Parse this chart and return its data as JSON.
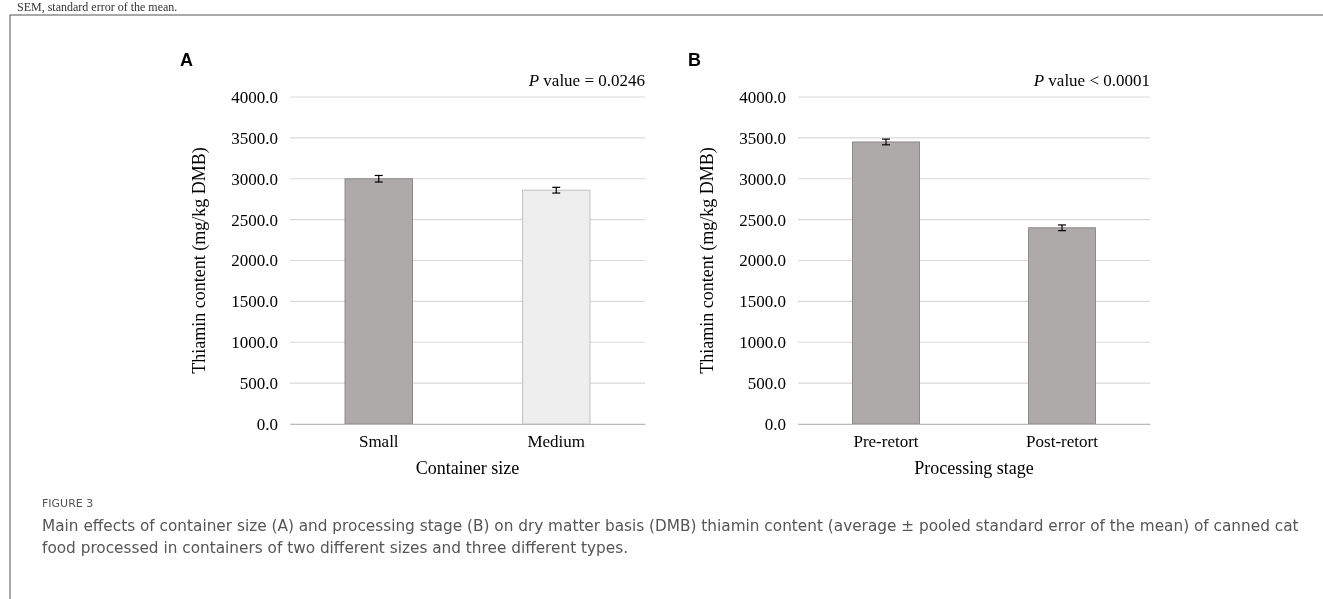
{
  "chart_data": [
    {
      "type": "bar",
      "title": "A",
      "xlabel": "Container size",
      "ylabel": "Thiamin content (mg/kg DMB)",
      "categories": [
        "Small",
        "Medium"
      ],
      "values": [
        3000,
        2860
      ],
      "errors": [
        40,
        35
      ],
      "colors": [
        "#aeaaaa",
        "#eeeeee"
      ],
      "ylim": [
        0,
        4000
      ],
      "yticks": [
        {
          "value": 0,
          "label": "0.0"
        },
        {
          "value": 500,
          "label": "500.0"
        },
        {
          "value": 1000,
          "label": "1000.0"
        },
        {
          "value": 1500,
          "label": "1500.0"
        },
        {
          "value": 2000,
          "label": "2000.0"
        },
        {
          "value": 2500,
          "label": "2500.0"
        },
        {
          "value": 3000,
          "label": "3000.0"
        },
        {
          "value": 3500,
          "label": "3500.0"
        },
        {
          "value": 4000,
          "label": "4000.0"
        }
      ],
      "grid": "y",
      "annotations": [
        "P value = 0.0246",
        "SEM, standard error of the mean.",
        "FIGURE 3",
        "Main effects of container size (A) and processing stage (B) on dry matter basis (DMB) thiamin content (average ± pooled standard error of the mean) of canned cat food processed in containers of two different sizes and three different types."
      ]
    },
    {
      "type": "bar",
      "title": "B",
      "xlabel": "Processing stage",
      "ylabel": "Thiamin content (mg/kg DMB)",
      "categories": [
        "Pre-retort",
        "Post-retort"
      ],
      "values": [
        3450,
        2400
      ],
      "errors": [
        35,
        35
      ],
      "colors": [
        "#aeaaaa",
        "#aeaaaa"
      ],
      "ylim": [
        0,
        4000
      ],
      "yticks": [
        {
          "value": 0,
          "label": "0.0"
        },
        {
          "value": 500,
          "label": "500.0"
        },
        {
          "value": 1000,
          "label": "1000.0"
        },
        {
          "value": 1500,
          "label": "1500.0"
        },
        {
          "value": 2000,
          "label": "2000.0"
        },
        {
          "value": 2500,
          "label": "2500.0"
        },
        {
          "value": 3000,
          "label": "3000.0"
        },
        {
          "value": 3500,
          "label": "3500.0"
        },
        {
          "value": 4000,
          "label": "4000.0"
        }
      ],
      "grid": "y",
      "annotations": [
        "P value < 0.0001"
      ]
    }
  ]
}
